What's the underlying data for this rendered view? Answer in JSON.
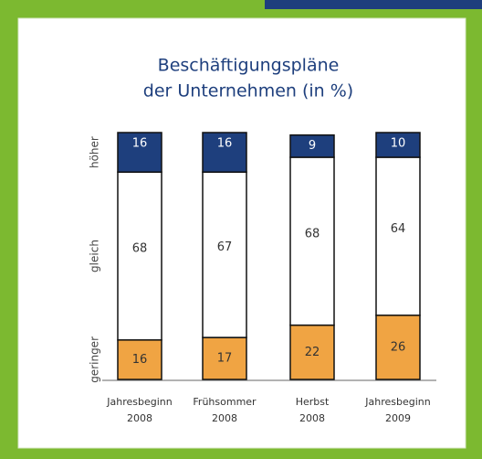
{
  "chart_data": {
    "type": "stacked_bar",
    "title": [
      "Beschäftigungspläne",
      "der Unternehmen (in %)"
    ],
    "categories": [
      [
        "Jahresbeginn",
        "2008"
      ],
      [
        "Frühsommer",
        "2008"
      ],
      [
        "Herbst",
        "2008"
      ],
      [
        "Jahresbeginn",
        "2009"
      ]
    ],
    "series": [
      {
        "name": "geringer",
        "color": "#f0a443",
        "values": [
          16,
          17,
          22,
          26
        ]
      },
      {
        "name": "gleich",
        "color": "#ffffff",
        "values": [
          68,
          67,
          68,
          64
        ]
      },
      {
        "name": "höher",
        "color": "#1e3f7d",
        "values": [
          16,
          16,
          9,
          10
        ]
      }
    ],
    "ylim": [
      0,
      100
    ]
  }
}
